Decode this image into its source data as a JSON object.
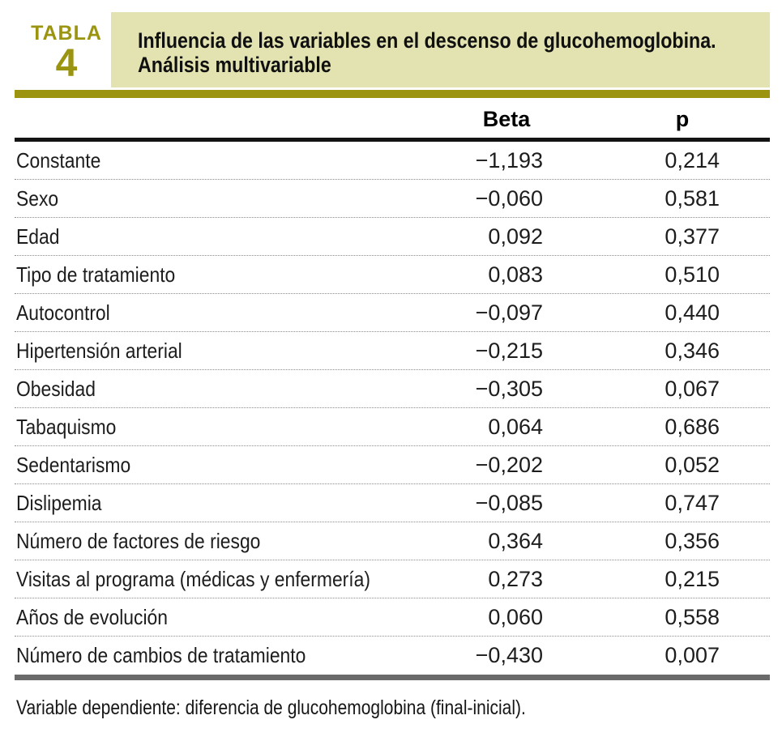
{
  "badge": {
    "word": "TABLA",
    "number": "4"
  },
  "title": {
    "line1": "Influencia de las variables en el descenso de glucohemoglobina.",
    "line2": "Análisis multivariable"
  },
  "columns": {
    "beta": "Beta",
    "p": "p"
  },
  "rows": [
    {
      "variable": "Constante",
      "beta": "−1,193",
      "p": "0,214"
    },
    {
      "variable": "Sexo",
      "beta": "−0,060",
      "p": "0,581"
    },
    {
      "variable": "Edad",
      "beta": "0,092",
      "p": "0,377"
    },
    {
      "variable": "Tipo de tratamiento",
      "beta": "0,083",
      "p": "0,510"
    },
    {
      "variable": "Autocontrol",
      "beta": "−0,097",
      "p": "0,440"
    },
    {
      "variable": "Hipertensión arterial",
      "beta": "−0,215",
      "p": "0,346"
    },
    {
      "variable": "Obesidad",
      "beta": "−0,305",
      "p": "0,067"
    },
    {
      "variable": "Tabaquismo",
      "beta": "0,064",
      "p": "0,686"
    },
    {
      "variable": "Sedentarismo",
      "beta": "−0,202",
      "p": "0,052"
    },
    {
      "variable": "Dislipemia",
      "beta": "−0,085",
      "p": "0,747"
    },
    {
      "variable": "Número de factores de riesgo",
      "beta": "0,364",
      "p": "0,356"
    },
    {
      "variable": "Visitas al programa (médicas y enfermería)",
      "beta": "0,273",
      "p": "0,215"
    },
    {
      "variable": "Años de evolución",
      "beta": "0,060",
      "p": "0,558"
    },
    {
      "variable": "Número de cambios de tratamiento",
      "beta": "−0,430",
      "p": "0,007"
    }
  ],
  "footnote": "Variable dependiente: diferencia de glucohemoglobina (final-inicial).",
  "colors": {
    "accent_olive": "#9a9410",
    "title_background": "#e3e3b2",
    "bottom_rule_gray": "#6a6a6a"
  }
}
